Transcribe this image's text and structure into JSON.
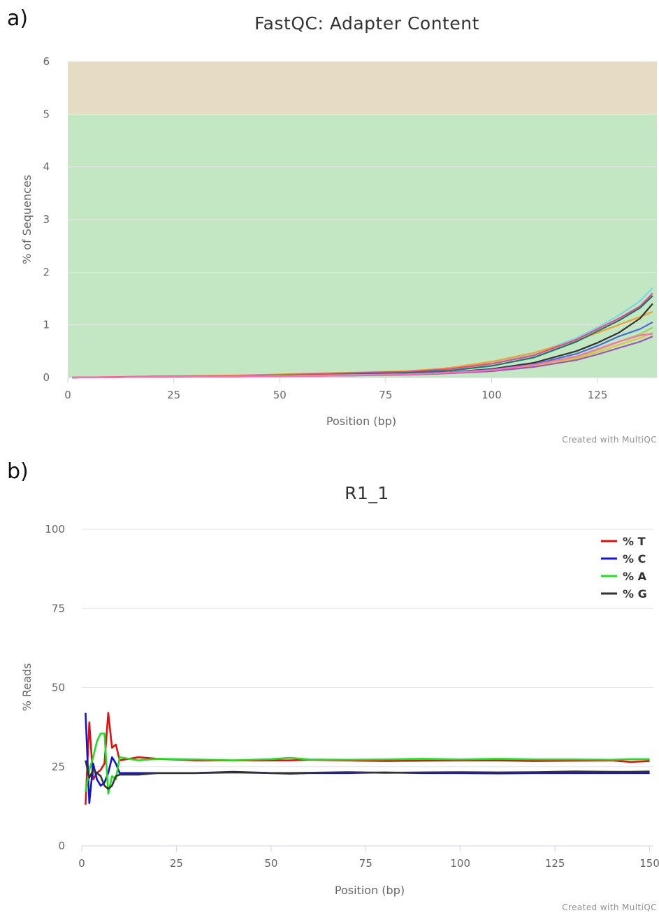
{
  "panel_labels": [
    "a)",
    "b)"
  ],
  "credit_text": "Created with MultiQC",
  "chart_data": [
    {
      "type": "line",
      "title": "FastQC: Adapter Content",
      "xlabel": "Position (bp)",
      "ylabel": "% of Sequences",
      "xlim": [
        0,
        139
      ],
      "ylim": [
        0,
        6
      ],
      "xticks": [
        "0",
        "25",
        "50",
        "75",
        "100",
        "125"
      ],
      "yticks": [
        "0",
        "1",
        "2",
        "3",
        "4",
        "5",
        "6"
      ],
      "bands": [
        {
          "from": 0,
          "to": 5,
          "color": "#c3e6c3",
          "meaning": "pass"
        },
        {
          "from": 5,
          "to": 6,
          "color": "#e6dcc4",
          "meaning": "warn"
        }
      ],
      "legend": "none",
      "note": "many overlapping sample curves; approximate envelope values shown",
      "x": [
        1,
        20,
        40,
        60,
        80,
        90,
        100,
        110,
        120,
        125,
        130,
        135,
        138
      ],
      "series": [
        {
          "color": "#7cd6e6",
          "values": [
            0.0,
            0.01,
            0.02,
            0.05,
            0.1,
            0.16,
            0.27,
            0.45,
            0.75,
            0.95,
            1.18,
            1.45,
            1.7
          ]
        },
        {
          "color": "#f0a030",
          "values": [
            0.0,
            0.02,
            0.04,
            0.08,
            0.12,
            0.18,
            0.3,
            0.47,
            0.7,
            0.85,
            1.0,
            1.15,
            1.25
          ]
        },
        {
          "color": "#e84a8a",
          "values": [
            0.0,
            0.02,
            0.03,
            0.07,
            0.11,
            0.16,
            0.26,
            0.42,
            0.72,
            0.92,
            1.12,
            1.35,
            1.6
          ]
        },
        {
          "color": "#1a7a6e",
          "values": [
            0.0,
            0.01,
            0.02,
            0.05,
            0.09,
            0.13,
            0.22,
            0.38,
            0.68,
            0.88,
            1.08,
            1.32,
            1.55
          ]
        },
        {
          "color": "#333333",
          "values": [
            0.0,
            0.01,
            0.02,
            0.04,
            0.07,
            0.1,
            0.16,
            0.28,
            0.5,
            0.66,
            0.85,
            1.12,
            1.4
          ]
        },
        {
          "color": "#4a6ed8",
          "values": [
            0.0,
            0.01,
            0.02,
            0.04,
            0.07,
            0.1,
            0.15,
            0.25,
            0.45,
            0.6,
            0.78,
            0.92,
            1.05
          ]
        },
        {
          "color": "#a0d060",
          "values": [
            0.0,
            0.01,
            0.02,
            0.04,
            0.06,
            0.09,
            0.13,
            0.22,
            0.38,
            0.52,
            0.68,
            0.82,
            0.95
          ]
        },
        {
          "color": "#d8c840",
          "values": [
            0.0,
            0.01,
            0.02,
            0.04,
            0.06,
            0.09,
            0.13,
            0.22,
            0.36,
            0.48,
            0.62,
            0.75,
            0.85
          ]
        },
        {
          "color": "#9b59b6",
          "values": [
            0.0,
            0.01,
            0.02,
            0.03,
            0.05,
            0.08,
            0.12,
            0.2,
            0.33,
            0.44,
            0.56,
            0.68,
            0.78
          ]
        },
        {
          "color": "#ff6fb0",
          "values": [
            0.0,
            0.01,
            0.02,
            0.03,
            0.06,
            0.09,
            0.14,
            0.24,
            0.4,
            0.54,
            0.68,
            0.8,
            0.83
          ]
        }
      ]
    },
    {
      "type": "line",
      "title": "R1_1",
      "xlabel": "Position (bp)",
      "ylabel": "% Reads",
      "xlim": [
        0,
        151
      ],
      "ylim": [
        0,
        100
      ],
      "xticks": [
        "0",
        "25",
        "50",
        "75",
        "100",
        "125",
        "150"
      ],
      "yticks": [
        "0",
        "25",
        "50",
        "75",
        "100"
      ],
      "legend": "top-right",
      "x": [
        1,
        2,
        3,
        4,
        5,
        6,
        7,
        8,
        9,
        10,
        15,
        20,
        30,
        40,
        50,
        55,
        60,
        70,
        80,
        90,
        100,
        110,
        120,
        130,
        140,
        145,
        150
      ],
      "series": [
        {
          "name": "% T",
          "color": "#dd1111",
          "values": [
            13,
            39,
            21,
            23,
            24,
            26,
            42,
            31,
            32,
            27,
            28,
            27.5,
            27,
            27,
            27,
            27,
            27.2,
            27,
            26.8,
            26.9,
            27,
            27,
            26.8,
            26.9,
            27,
            26.5,
            26.8
          ]
        },
        {
          "name": "% C",
          "color": "#1515cc",
          "values": [
            42,
            13.5,
            26,
            21,
            19,
            20,
            23,
            28,
            26,
            23,
            23,
            23,
            23,
            23.4,
            23,
            22.8,
            23,
            23,
            23.2,
            23,
            23,
            22.9,
            23,
            23,
            23,
            23,
            23
          ]
        },
        {
          "name": "% A",
          "color": "#22dd22",
          "values": [
            17,
            24,
            28,
            33,
            35.5,
            35.5,
            16.5,
            22,
            21,
            28,
            27,
            27.5,
            27.3,
            27,
            27.4,
            27.8,
            27.3,
            27.2,
            27.3,
            27.5,
            27.3,
            27.5,
            27.3,
            27.3,
            27.2,
            27.4,
            27.4
          ]
        },
        {
          "name": "% G",
          "color": "#333333",
          "values": [
            27,
            21.5,
            24,
            23,
            22,
            19,
            18,
            19,
            22,
            22.5,
            22.5,
            23,
            23,
            23.2,
            23,
            23,
            23.1,
            23.3,
            23.1,
            23.2,
            23.3,
            23.2,
            23.3,
            23.5,
            23.4,
            23.4,
            23.5
          ]
        }
      ]
    }
  ]
}
